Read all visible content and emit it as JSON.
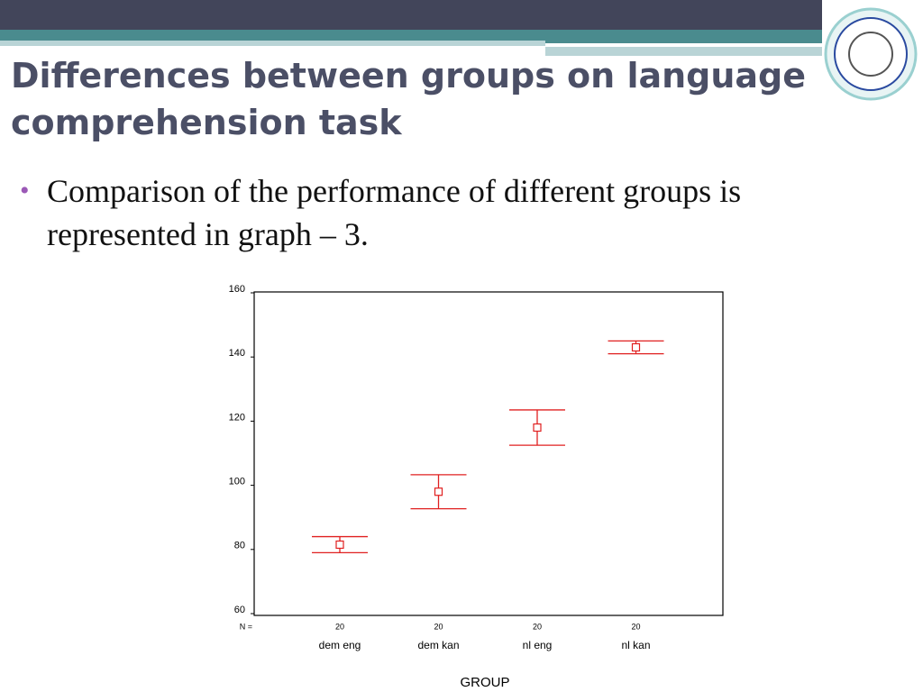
{
  "slide": {
    "title_lines": [
      "Differences between groups on language",
      "comprehension task"
    ],
    "bullet_lines": [
      "Comparison of the performance of different groups is",
      "represented in graph – 3."
    ]
  },
  "chart_data": {
    "type": "errorbar",
    "x_label": "GROUP",
    "categories": [
      "dem eng",
      "dem kan",
      "nl eng",
      "nl kan"
    ],
    "n_label": "N =",
    "n": [
      20,
      20,
      20,
      20
    ],
    "series": [
      {
        "color": "#e02020",
        "values": [
          81.5,
          98,
          118,
          143
        ],
        "errors": [
          2.5,
          5.3,
          5.5,
          2
        ]
      }
    ],
    "ylim": [
      60,
      160
    ],
    "yticks": [
      60,
      80,
      100,
      120,
      140,
      160
    ]
  }
}
